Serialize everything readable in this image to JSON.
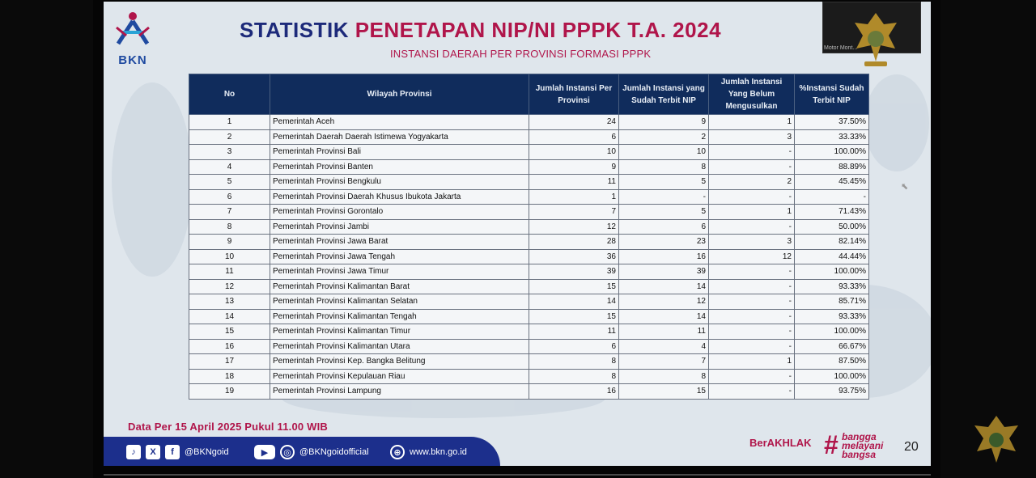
{
  "slide": {
    "logo_text": "BKN",
    "title_part1": "STATISTIK ",
    "title_part2": "PENETAPAN NIP/NI PPPK T.A. 2024",
    "subtitle": "INSTANSI DAERAH PER PROVINSI FORMASI PPPK",
    "table": {
      "headers": [
        "No",
        "Wilayah Provinsi",
        "Jumlah Instansi Per Provinsi",
        "Jumlah Instansi yang Sudah Terbit NIP",
        "Jumlah Instansi Yang Belum Mengusulkan",
        "%Instansi Sudah Terbit NIP"
      ],
      "rows": [
        [
          "1",
          "Pemerintah Aceh",
          "24",
          "9",
          "1",
          "37.50%"
        ],
        [
          "2",
          "Pemerintah Daerah Daerah Istimewa Yogyakarta",
          "6",
          "2",
          "3",
          "33.33%"
        ],
        [
          "3",
          "Pemerintah Provinsi Bali",
          "10",
          "10",
          "-",
          "100.00%"
        ],
        [
          "4",
          "Pemerintah Provinsi Banten",
          "9",
          "8",
          "-",
          "88.89%"
        ],
        [
          "5",
          "Pemerintah Provinsi Bengkulu",
          "11",
          "5",
          "2",
          "45.45%"
        ],
        [
          "6",
          "Pemerintah Provinsi Daerah Khusus Ibukota Jakarta",
          "1",
          "-",
          "-",
          "-"
        ],
        [
          "7",
          "Pemerintah Provinsi Gorontalo",
          "7",
          "5",
          "1",
          "71.43%"
        ],
        [
          "8",
          "Pemerintah Provinsi Jambi",
          "12",
          "6",
          "-",
          "50.00%"
        ],
        [
          "9",
          "Pemerintah Provinsi Jawa Barat",
          "28",
          "23",
          "3",
          "82.14%"
        ],
        [
          "10",
          "Pemerintah Provinsi Jawa Tengah",
          "36",
          "16",
          "12",
          "44.44%"
        ],
        [
          "11",
          "Pemerintah Provinsi Jawa Timur",
          "39",
          "39",
          "-",
          "100.00%"
        ],
        [
          "12",
          "Pemerintah Provinsi Kalimantan Barat",
          "15",
          "14",
          "-",
          "93.33%"
        ],
        [
          "13",
          "Pemerintah Provinsi Kalimantan Selatan",
          "14",
          "12",
          "-",
          "85.71%"
        ],
        [
          "14",
          "Pemerintah Provinsi Kalimantan Tengah",
          "15",
          "14",
          "-",
          "93.33%"
        ],
        [
          "15",
          "Pemerintah Provinsi Kalimantan Timur",
          "11",
          "11",
          "-",
          "100.00%"
        ],
        [
          "16",
          "Pemerintah Provinsi Kalimantan Utara",
          "6",
          "4",
          "-",
          "66.67%"
        ],
        [
          "17",
          "Pemerintah Provinsi Kep. Bangka Belitung",
          "8",
          "7",
          "1",
          "87.50%"
        ],
        [
          "18",
          "Pemerintah Provinsi Kepulauan Riau",
          "8",
          "8",
          "-",
          "100.00%"
        ],
        [
          "19",
          "Pemerintah Provinsi Lampung",
          "16",
          "15",
          "-",
          "93.75%"
        ]
      ]
    },
    "footer_date": "Data Per 15 April  2025 Pukul 11.00 WIB",
    "socials": {
      "handle1": "@BKNgoid",
      "handle2": "@BKNgoidofficial",
      "website": "www.bkn.go.id"
    },
    "berakhlak": "BerAKHLAK",
    "bangga_lines": [
      "bangga",
      "melayani",
      "bangsa"
    ],
    "page_number": "20"
  },
  "camera": {
    "label": "Motor Mont..."
  },
  "colors": {
    "navy": "#102c5c",
    "brand_red": "#b0154a",
    "brand_blue": "#1d2a7a"
  },
  "icons": [
    "tiktok-icon",
    "x-icon",
    "facebook-icon",
    "youtube-icon",
    "instagram-icon",
    "globe-icon",
    "garuda-emblem-icon",
    "cursor-icon"
  ]
}
